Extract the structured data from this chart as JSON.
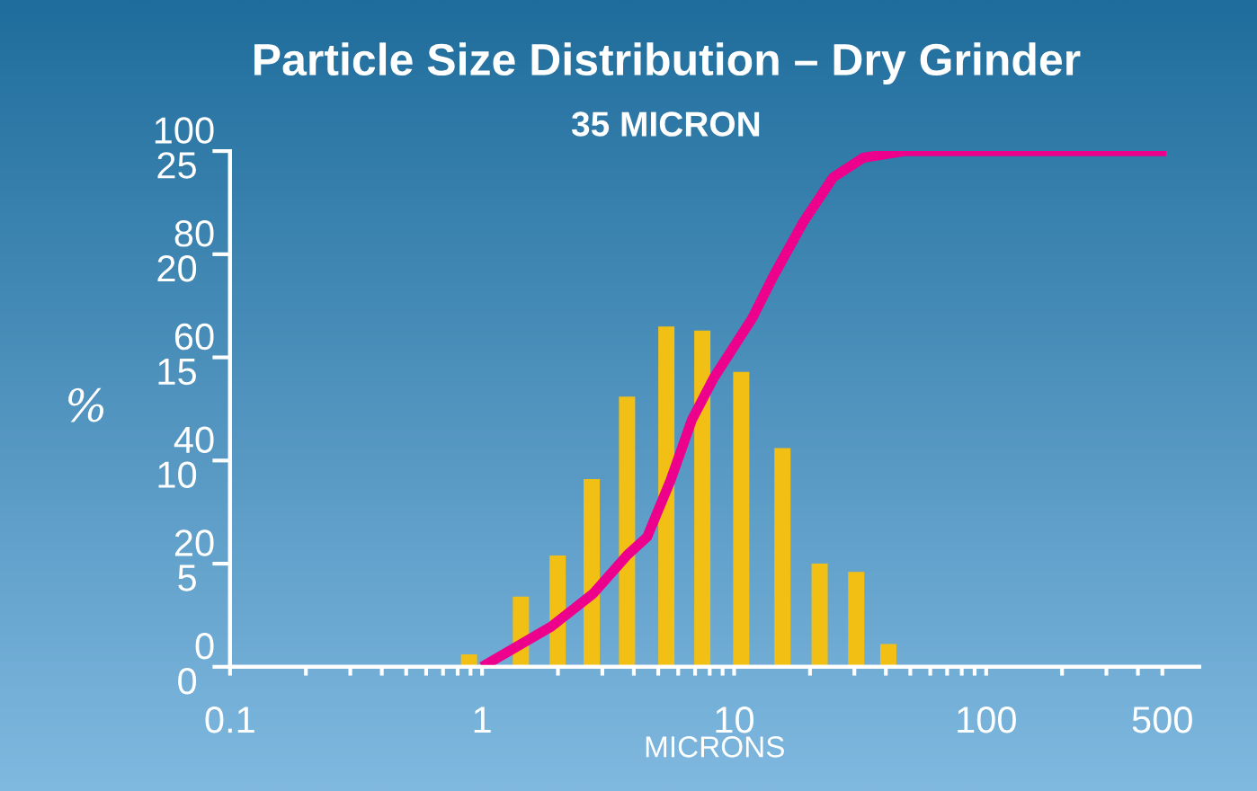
{
  "chart_data": {
    "type": "bar",
    "title": "Particle Size Distribution – Dry Grinder",
    "subtitle": "35 MICRON",
    "xlabel": "MICRONS",
    "ylabel": "%",
    "log": "x",
    "xlim": [
      0.1,
      700
    ],
    "xticks": [
      0.1,
      {
        "value": 0.2,
        "label": null
      },
      {
        "value": 0.3,
        "label": null
      },
      {
        "value": 0.4,
        "label": null
      },
      {
        "value": 0.5,
        "label": null
      },
      {
        "value": 0.6,
        "label": null
      },
      {
        "value": 0.7,
        "label": null
      },
      {
        "value": 0.8,
        "label": null
      },
      {
        "value": 0.9,
        "label": null
      },
      1,
      {
        "value": 2,
        "label": null
      },
      {
        "value": 3,
        "label": null
      },
      {
        "value": 4,
        "label": null
      },
      {
        "value": 5,
        "label": null
      },
      {
        "value": 6,
        "label": null
      },
      {
        "value": 7,
        "label": null
      },
      {
        "value": 8,
        "label": null
      },
      {
        "value": 9,
        "label": null
      },
      10,
      {
        "value": 20,
        "label": null
      },
      {
        "value": 30,
        "label": null
      },
      {
        "value": 40,
        "label": null
      },
      {
        "value": 50,
        "label": null
      },
      {
        "value": 60,
        "label": null
      },
      {
        "value": 70,
        "label": null
      },
      {
        "value": 80,
        "label": null
      },
      {
        "value": 90,
        "label": null
      },
      100,
      {
        "value": 200,
        "label": null
      },
      {
        "value": 300,
        "label": null
      },
      {
        "value": 400,
        "label": null
      },
      500
    ],
    "ylim": [
      0,
      25
    ],
    "yticks": [
      0,
      5,
      10,
      15,
      20,
      25
    ],
    "y2lim": [
      0,
      100
    ],
    "y2ticks": [
      0,
      20,
      40,
      60,
      80,
      100
    ],
    "grid": false,
    "series": [
      {
        "color": "#f2c014",
        "x": [
          0.89,
          1.43,
          2.0,
          2.73,
          3.77,
          5.4,
          7.5,
          10.7,
          15.6,
          21.9,
          30.6,
          41
        ],
        "values": [
          0.6,
          3.4,
          5.4,
          9.1,
          13.1,
          16.5,
          16.3,
          14.3,
          10.6,
          5.0,
          4.6,
          1.1
        ]
      },
      {
        "type": "line",
        "axis": "y2",
        "color": "#ec008c",
        "x": [
          1.0,
          1.88,
          2.76,
          3.77,
          4.52,
          5.6,
          6.8,
          8.3,
          11.8,
          14.3,
          18.8,
          24.7,
          32.5,
          47.8,
          518
        ],
        "values": [
          0,
          7.8,
          14.2,
          21.7,
          25.2,
          36.2,
          47.9,
          56,
          67.6,
          75.7,
          86.2,
          94.9,
          98.7,
          100,
          100
        ]
      }
    ]
  }
}
